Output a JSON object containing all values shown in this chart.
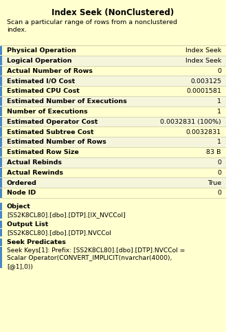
{
  "title": "Index Seek (NonClustered)",
  "subtitle": "Scan a particular range of rows from a nonclustered\nindex.",
  "bg_color": "#FFFFD0",
  "table_rows": [
    [
      "Physical Operation",
      "Index Seek"
    ],
    [
      "Logical Operation",
      "Index Seek"
    ],
    [
      "Actual Number of Rows",
      "0"
    ],
    [
      "Estimated I/O Cost",
      "0.003125"
    ],
    [
      "Estimated CPU Cost",
      "0.0001581"
    ],
    [
      "Estimated Number of Executions",
      "1"
    ],
    [
      "Number of Executions",
      "1"
    ],
    [
      "Estimated Operator Cost",
      "0.0032831 (100%)"
    ],
    [
      "Estimated Subtree Cost",
      "0.0032831"
    ],
    [
      "Estimated Number of Rows",
      "1"
    ],
    [
      "Estimated Row Size",
      "83 B"
    ],
    [
      "Actual Rebinds",
      "0"
    ],
    [
      "Actual Rewinds",
      "0"
    ],
    [
      "Ordered",
      "True"
    ],
    [
      "Node ID",
      "0"
    ]
  ],
  "sections": [
    {
      "label": "Object",
      "content": "[SS2K8CL80].[dbo].[DTP].[IX_NVCCol]"
    },
    {
      "label": "Output List",
      "content": "[SS2K8CL80].[dbo].[DTP].NVCCol"
    },
    {
      "label": "Seek Predicates",
      "content": "Seek Keys[1]: Prefix: [SS2K8CL80].[dbo].[DTP].NVCCol =\nScalar Operator(CONVERT_IMPLICIT(nvarchar(4000),\n[@1],0))"
    }
  ],
  "left_bar_color": "#4a86c8",
  "row_colors": [
    "#FFFFD0",
    "#F5F5DC"
  ],
  "divider_color": "#C8C8A8",
  "text_color": "#000000",
  "label_fontsize": 6.8,
  "value_fontsize": 6.8,
  "title_fontsize": 8.5,
  "subtitle_fontsize": 6.8
}
